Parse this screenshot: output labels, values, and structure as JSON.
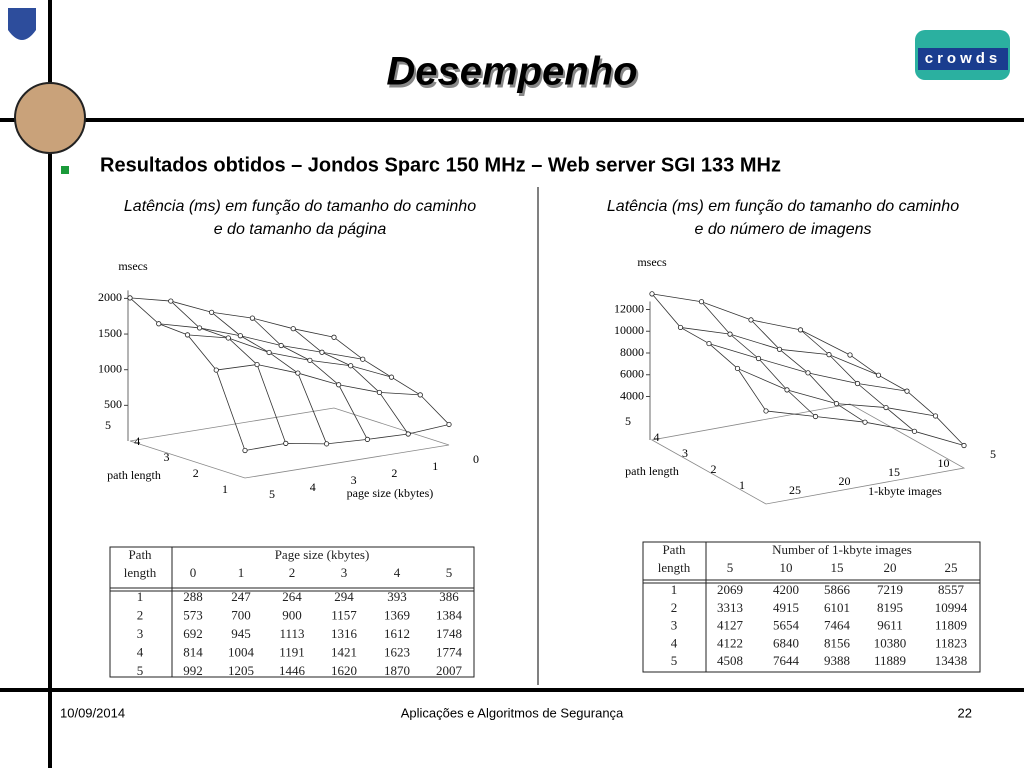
{
  "header": {
    "title": "Desempenho",
    "logo_text": "crowds"
  },
  "bullet": "Resultados obtidos – Jondos Sparc 150 MHz – Web server SGI 133 MHz",
  "panels": [
    {
      "caption": [
        "Latência (ms) em função do tamanho do caminho",
        "e do tamanho da página"
      ],
      "plot": {
        "z_label": "msecs",
        "z_ticks": [
          500,
          1000,
          1500,
          2000
        ],
        "y_label": "path length",
        "y_ticks": [
          5,
          4,
          3,
          2,
          1
        ],
        "x_label": "page size (kbytes)",
        "x_ticks": [
          5,
          4,
          3,
          2,
          1,
          0
        ]
      },
      "table": {
        "row_header": [
          "Path",
          "length"
        ],
        "group": "Page size (kbytes)",
        "columns": [
          0,
          1,
          2,
          3,
          4,
          5
        ],
        "rows": [
          [
            1,
            288,
            247,
            264,
            294,
            393,
            386
          ],
          [
            2,
            573,
            700,
            900,
            1157,
            1369,
            1384
          ],
          [
            3,
            692,
            945,
            1113,
            1316,
            1612,
            1748
          ],
          [
            4,
            814,
            1004,
            1191,
            1421,
            1623,
            1774
          ],
          [
            5,
            992,
            1205,
            1446,
            1620,
            1870,
            2007
          ]
        ]
      }
    },
    {
      "caption": [
        "Latência (ms) em função do tamanho do caminho",
        "e do número de imagens"
      ],
      "plot": {
        "z_label": "msecs",
        "z_ticks": [
          4000,
          6000,
          8000,
          10000,
          12000
        ],
        "y_label": "path length",
        "y_ticks": [
          5,
          4,
          3,
          2,
          1
        ],
        "x_label": "1-kbyte images",
        "x_ticks": [
          25,
          20,
          15,
          10,
          5
        ]
      },
      "table": {
        "row_header": [
          "Path",
          "length"
        ],
        "group": "Number of 1-kbyte images",
        "columns": [
          5,
          10,
          15,
          20,
          25
        ],
        "rows": [
          [
            1,
            2069,
            4200,
            5866,
            7219,
            8557
          ],
          [
            2,
            3313,
            4915,
            6101,
            8195,
            10994
          ],
          [
            3,
            4127,
            5654,
            7464,
            9611,
            11809
          ],
          [
            4,
            4122,
            6840,
            8156,
            10380,
            11823
          ],
          [
            5,
            4508,
            7644,
            9388,
            11889,
            13438
          ]
        ]
      }
    }
  ],
  "footer": {
    "date": "10/09/2014",
    "course": "Aplicações e Algoritmos de Segurança",
    "page": "22"
  }
}
